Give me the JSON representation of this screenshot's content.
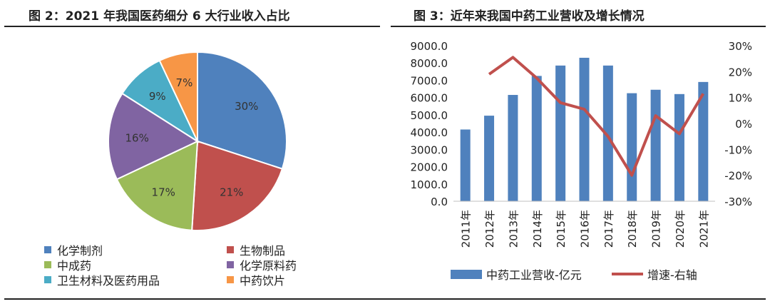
{
  "figures": {
    "left": {
      "title": "图 2：2021 年我国医药细分 6 大行业收入占比"
    },
    "right": {
      "title": "图 3：近年来我国中药工业营收及增长情况"
    }
  },
  "chart_data": [
    {
      "type": "pie",
      "title": "图 2：2021 年我国医药细分 6 大行业收入占比",
      "labels": [
        "化学制剂",
        "生物制品",
        "中成药",
        "化学原料药",
        "卫生材料及医药用品",
        "中药饮片"
      ],
      "values": [
        30,
        21,
        17,
        16,
        9,
        7
      ],
      "value_labels": [
        "30%",
        "21%",
        "17%",
        "16%",
        "9%",
        "7%"
      ],
      "colors": [
        "#4f81bd",
        "#c0504d",
        "#9bbb59",
        "#8064a2",
        "#4bacc6",
        "#f79646"
      ],
      "legend": "bottom"
    },
    {
      "type": "bar",
      "title": "图 3：近年来我国中药工业营收及增长情况",
      "categories": [
        "2011年",
        "2012年",
        "2013年",
        "2014年",
        "2015年",
        "2016年",
        "2017年",
        "2018年",
        "2019年",
        "2020年",
        "2021年"
      ],
      "series": [
        {
          "name": "中药工业营收-亿元",
          "type": "bar",
          "axis": "left",
          "color": "#4f81bd",
          "values": [
            4150,
            4950,
            6150,
            7250,
            7850,
            8300,
            7850,
            6250,
            6450,
            6200,
            6900
          ]
        },
        {
          "name": "增速-右轴",
          "type": "line",
          "axis": "right",
          "color": "#c0504d",
          "values": [
            null,
            19,
            25.5,
            17.5,
            8,
            5.5,
            -5,
            -20,
            3,
            -4,
            11.5
          ]
        }
      ],
      "y_left": {
        "ylim": [
          0,
          9000
        ],
        "ticks": [
          "0.0",
          "1000.0",
          "2000.0",
          "3000.0",
          "4000.0",
          "5000.0",
          "6000.0",
          "7000.0",
          "8000.0",
          "9000.0"
        ]
      },
      "y_right": {
        "ylim": [
          -30,
          30
        ],
        "ticks": [
          "-30%",
          "-20%",
          "-10%",
          "0%",
          "10%",
          "20%",
          "30%"
        ]
      },
      "legend": "bottom"
    }
  ]
}
